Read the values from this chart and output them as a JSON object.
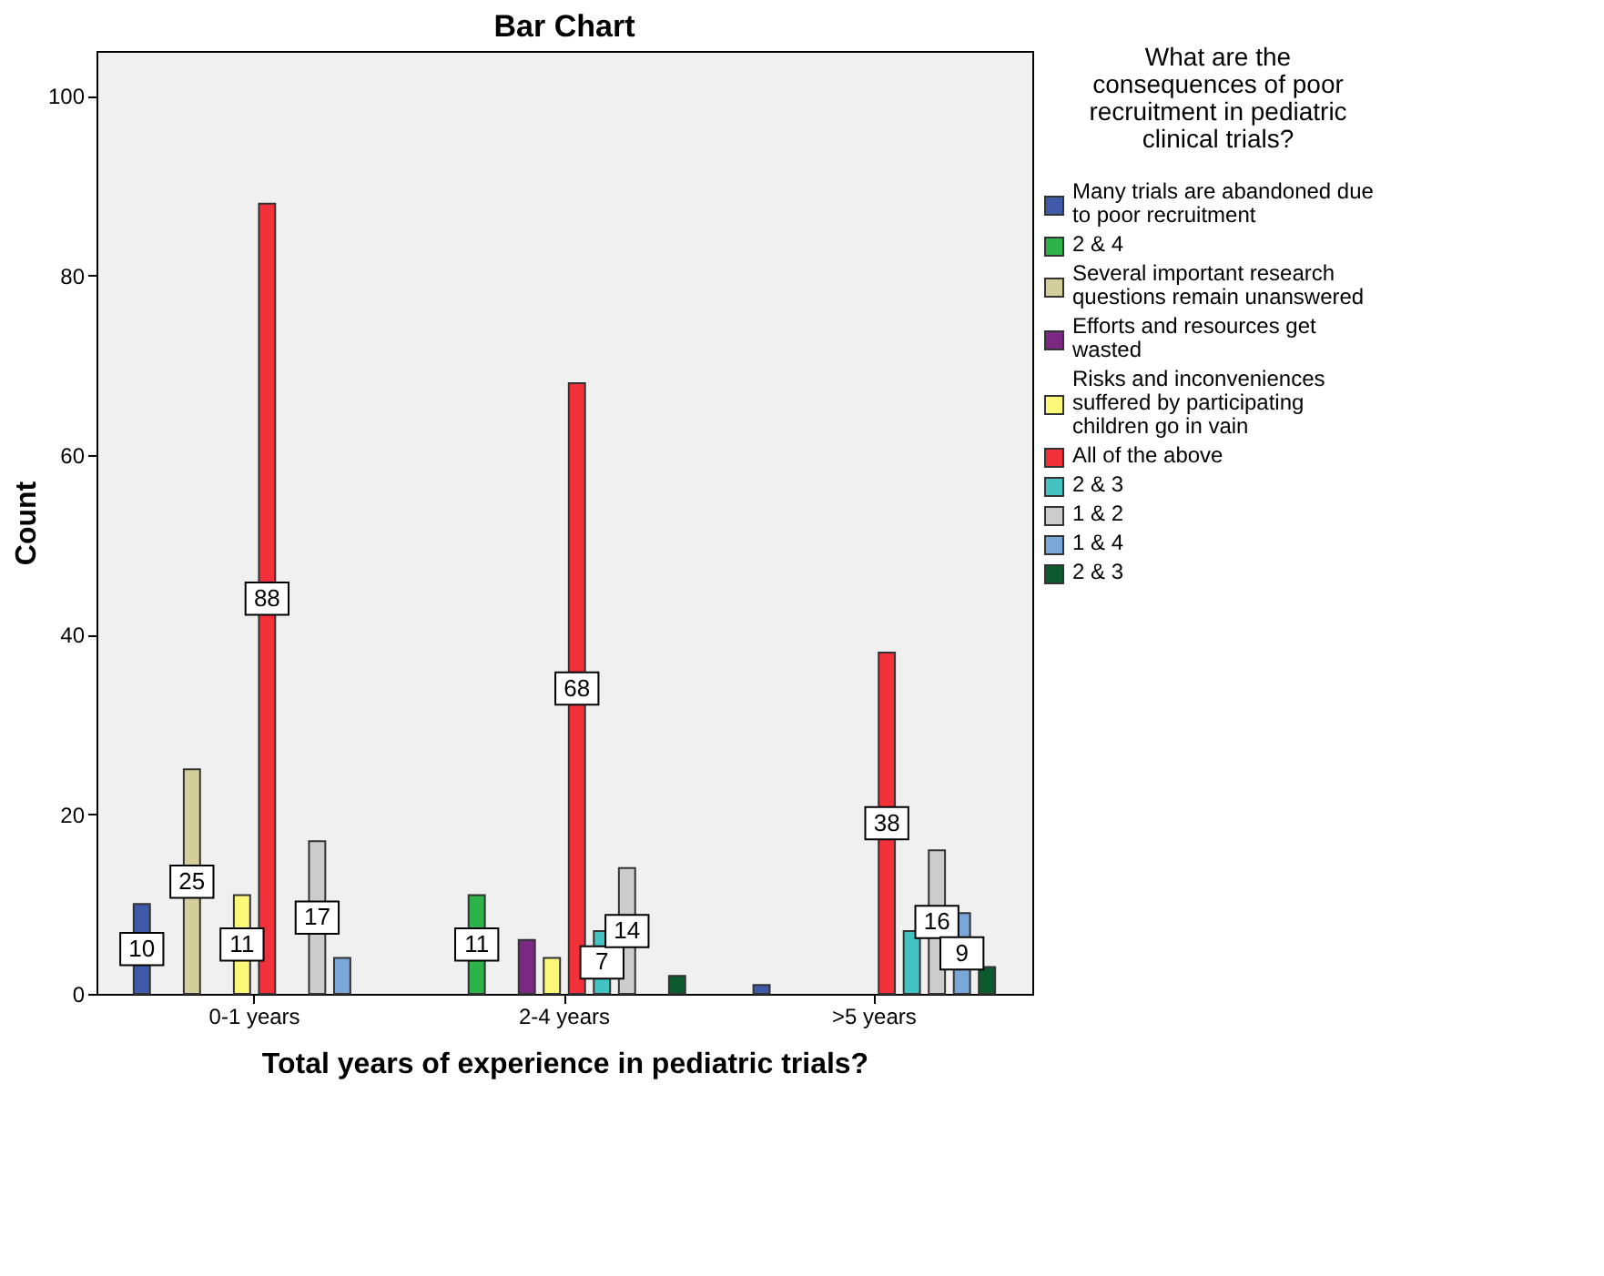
{
  "chart_data": {
    "type": "bar",
    "title": "Bar Chart",
    "xlabel": "Total years of experience in pediatric trials?",
    "ylabel": "Count",
    "legend_title": "What are the consequences of poor recruitment in pediatric clinical trials?",
    "categories": [
      "0-1 years",
      "2-4 years",
      ">5 years"
    ],
    "series": [
      {
        "name": "Many trials are abandoned due to poor recruitment",
        "color": "#3e5aa8",
        "values": [
          10,
          null,
          1
        ],
        "value_labels": [
          "10",
          null,
          null
        ]
      },
      {
        "name": "2 & 4",
        "color": "#2db34a",
        "values": [
          null,
          11,
          null
        ],
        "value_labels": [
          null,
          "11",
          null
        ]
      },
      {
        "name": "Several important research questions remain unanswered",
        "color": "#d4cf9a",
        "values": [
          25,
          null,
          null
        ],
        "value_labels": [
          "25",
          null,
          null
        ]
      },
      {
        "name": "Efforts and resources get wasted",
        "color": "#7a2882",
        "values": [
          null,
          6,
          null
        ],
        "value_labels": [
          null,
          null,
          null
        ]
      },
      {
        "name": "Risks and inconveniences suffered by participating children go in vain",
        "color": "#fbf87a",
        "values": [
          11,
          4,
          null
        ],
        "value_labels": [
          "11",
          null,
          null
        ]
      },
      {
        "name": "All of the above",
        "color": "#f2303a",
        "values": [
          88,
          68,
          38
        ],
        "value_labels": [
          "88",
          "68",
          "38"
        ]
      },
      {
        "name": "2 & 3",
        "color": "#45c3c3",
        "values": [
          null,
          7,
          7
        ],
        "value_labels": [
          null,
          "7",
          null
        ]
      },
      {
        "name": "1 & 2",
        "color": "#cccccc",
        "values": [
          17,
          14,
          16
        ],
        "value_labels": [
          "17",
          "14",
          "16"
        ]
      },
      {
        "name": "1 & 4",
        "color": "#79a7d8",
        "values": [
          4,
          null,
          9
        ],
        "value_labels": [
          null,
          null,
          "9"
        ]
      },
      {
        "name": "2 & 3",
        "color": "#0d5a2e",
        "values": [
          null,
          2,
          3
        ],
        "value_labels": [
          null,
          null,
          null
        ]
      }
    ],
    "ylim": [
      0,
      105
    ],
    "yticks": [
      0,
      20,
      40,
      60,
      80,
      100
    ],
    "grid": false,
    "legend": "right"
  }
}
